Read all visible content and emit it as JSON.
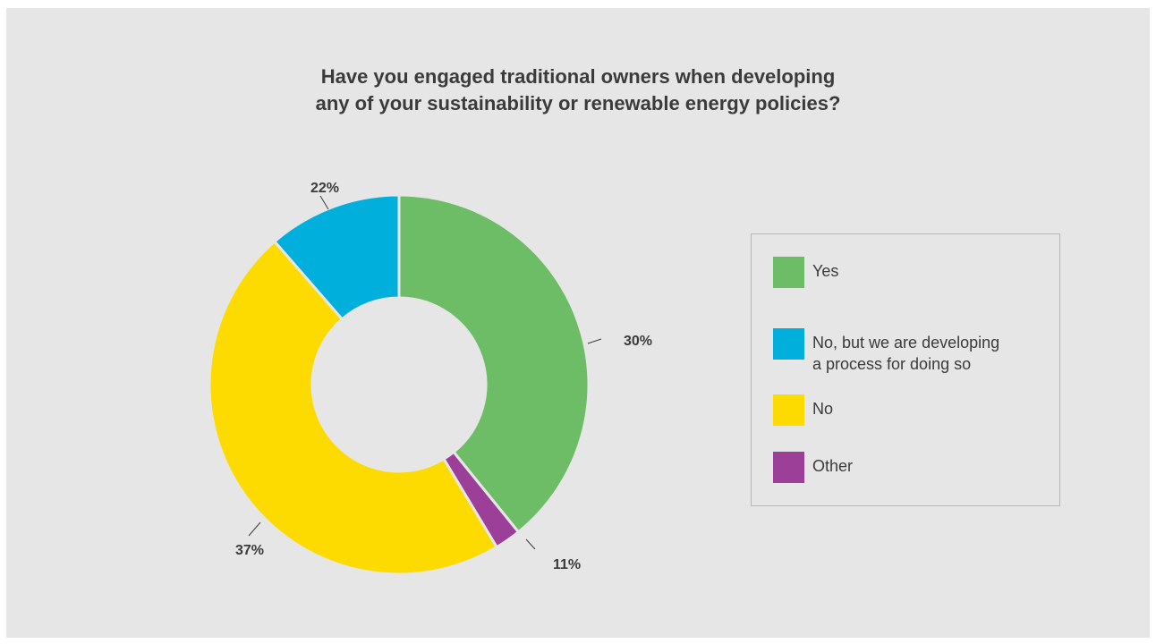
{
  "chart_data": {
    "type": "pie",
    "title_lines": [
      "Have you engaged traditional owners when developing",
      "any of your sustainability or renewable energy policies?"
    ],
    "slices": [
      {
        "label": "Yes",
        "display_label": "30%",
        "color": "#6dbd67"
      },
      {
        "label": "Other",
        "display_label": "11%",
        "color": "#9c3f98"
      },
      {
        "label": "No",
        "display_label": "37%",
        "color": "#fddb00"
      },
      {
        "label": "No, but we are developing a process for doing so",
        "display_label": "22%",
        "color": "#00afdb"
      }
    ],
    "legend": [
      {
        "label": "Yes",
        "color": "#6dbd67"
      },
      {
        "label": "No, but we are developing\na process for doing so",
        "color": "#00afdb"
      },
      {
        "label": "No",
        "color": "#fddb00"
      },
      {
        "label": "Other",
        "color": "#9c3f98"
      }
    ],
    "legend_position": "right"
  }
}
